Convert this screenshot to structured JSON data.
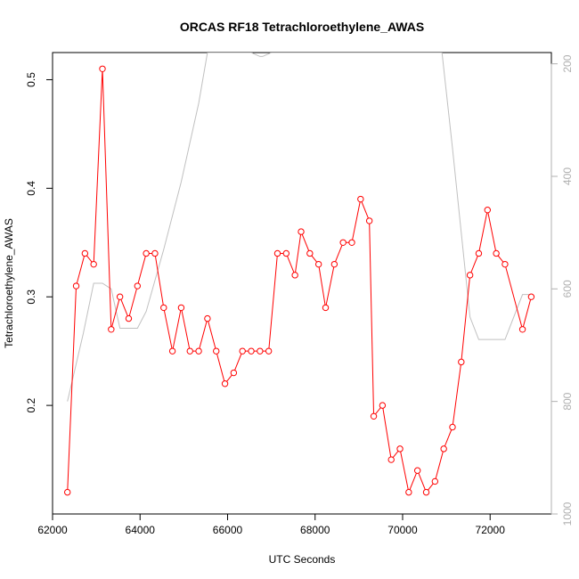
{
  "chart_data": {
    "type": "line",
    "title": "ORCAS RF18 Tetrachloroethylene_AWAS",
    "xlabel": "UTC Seconds",
    "ylabel": "Tetrachloroethylene_AWAS",
    "xlim": [
      62000,
      73400
    ],
    "ylim": [
      0.1,
      0.525
    ],
    "x_ticks": [
      62000,
      64000,
      66000,
      68000,
      70000,
      72000
    ],
    "y_ticks": [
      0.2,
      0.3,
      0.4,
      0.5
    ],
    "y2_ticks": [
      200,
      400,
      600,
      800,
      1000
    ],
    "y2lim": [
      1000,
      180
    ],
    "y2_reversed": true,
    "grid": false,
    "colors": {
      "series": "#ff0000",
      "pressure": "#c0c0c0",
      "right_axis": "#b0b0b0"
    },
    "series": [
      {
        "x": [
          62340,
          62540,
          62740,
          62940,
          63140,
          63340,
          63540,
          63740,
          63940,
          64140,
          64340,
          64540,
          64740,
          64940,
          65140,
          65340,
          65540,
          65740,
          65940,
          66140,
          66340,
          66540,
          66740,
          66940,
          67140,
          67340,
          67540,
          67680,
          67880,
          68080,
          68240,
          68440,
          68640,
          68840,
          69040,
          69240,
          69340,
          69540,
          69740,
          69940,
          70140,
          70340,
          70540,
          70740,
          70940,
          71140,
          71340,
          71540,
          71740,
          71940,
          72140,
          72340,
          72740,
          72940
        ],
        "y": [
          0.12,
          0.31,
          0.34,
          0.33,
          0.51,
          0.27,
          0.3,
          0.28,
          0.31,
          0.34,
          0.34,
          0.29,
          0.25,
          0.29,
          0.25,
          0.25,
          0.28,
          0.25,
          0.22,
          0.23,
          0.25,
          0.25,
          0.25,
          0.25,
          0.34,
          0.34,
          0.32,
          0.36,
          0.34,
          0.33,
          0.29,
          0.33,
          0.35,
          0.35,
          0.39,
          0.37,
          0.19,
          0.2,
          0.15,
          0.16,
          0.12,
          0.14,
          0.12,
          0.13,
          0.16,
          0.18,
          0.24,
          0.32,
          0.34,
          0.38,
          0.34,
          0.33,
          0.27,
          0.3
        ]
      },
      {
        "axis": "right",
        "x": [
          62340,
          62700,
          62940,
          63140,
          63340,
          63540,
          63740,
          63940,
          64140,
          64540,
          64940,
          65340,
          65540,
          66540,
          66740,
          66800,
          67000,
          68000,
          68800,
          69400,
          70400,
          70700,
          70900,
          71140,
          71540,
          71740,
          71940,
          72140,
          72340,
          72740,
          72940
        ],
        "y": [
          800,
          680,
          590,
          590,
          600,
          670,
          670,
          670,
          640,
          530,
          410,
          270,
          180,
          180,
          187,
          187,
          180,
          180,
          180,
          180,
          180,
          180,
          180,
          350,
          650,
          690,
          690,
          690,
          690,
          610,
          610
        ]
      }
    ]
  }
}
